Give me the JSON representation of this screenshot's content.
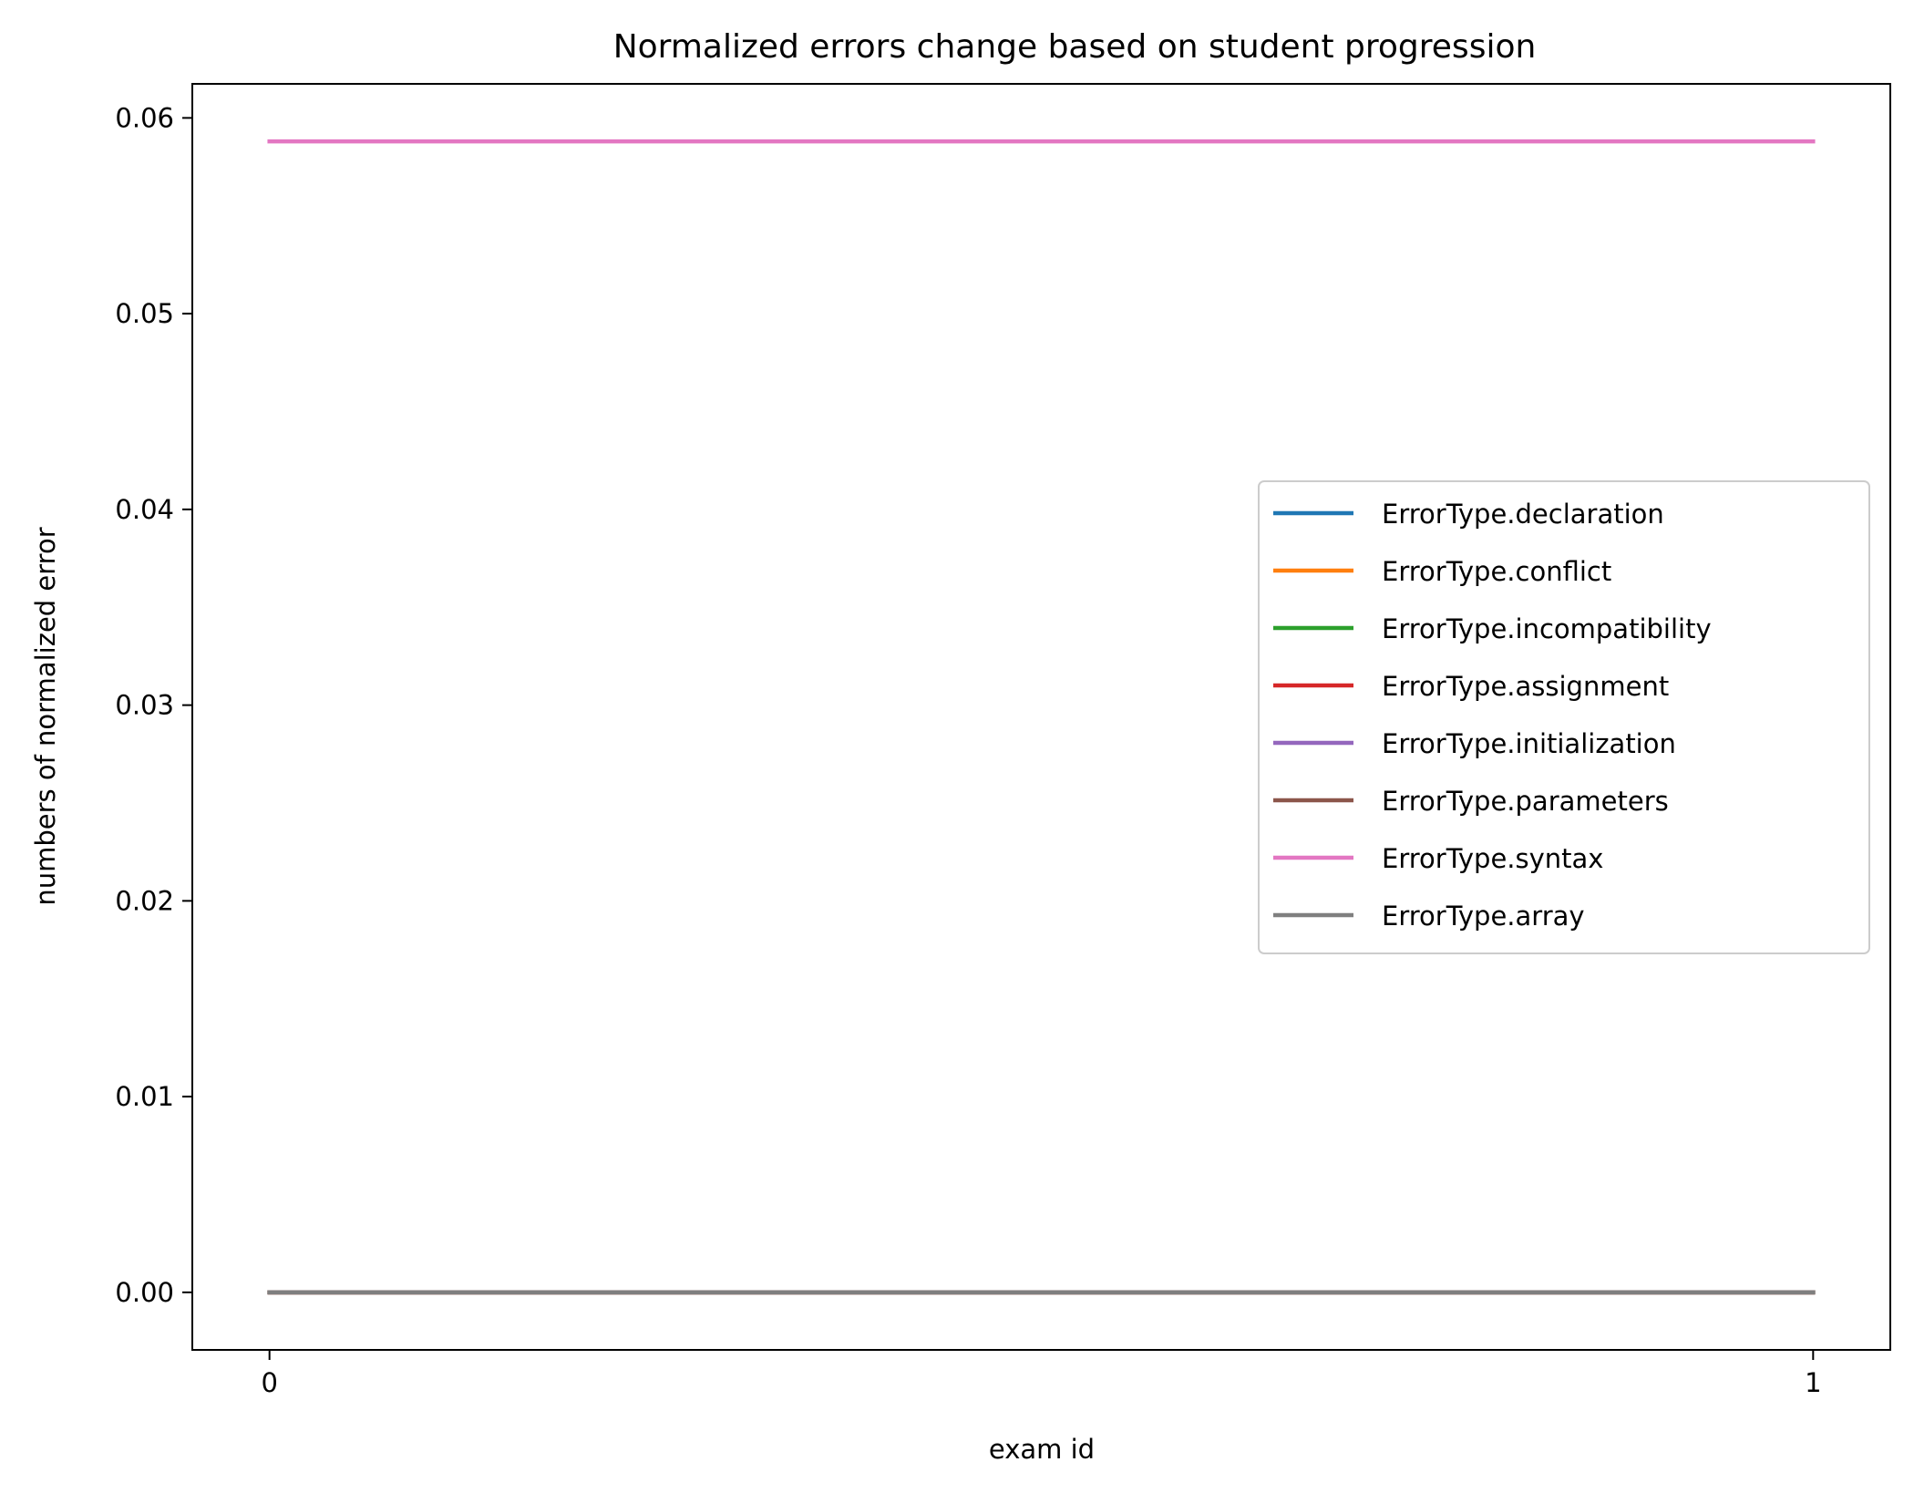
{
  "chart_data": {
    "type": "line",
    "title": "Normalized errors change based on student progression",
    "xlabel": "exam id",
    "ylabel": "numbers of normalized error",
    "x": [
      0,
      1
    ],
    "xticks": [
      "0",
      "1"
    ],
    "xlim": [
      -0.05,
      1.05
    ],
    "ylim": [
      -0.00294,
      0.06174
    ],
    "yticks": [
      0.0,
      0.01,
      0.02,
      0.03,
      0.04,
      0.05,
      0.06
    ],
    "ytick_labels": [
      "0.00",
      "0.01",
      "0.02",
      "0.03",
      "0.04",
      "0.05",
      "0.06"
    ],
    "grid": false,
    "legend_position": "center-right",
    "series": [
      {
        "name": "ErrorType.declaration",
        "color": "#1f77b4",
        "values": [
          0.0,
          0.0
        ]
      },
      {
        "name": "ErrorType.conflict",
        "color": "#ff7f0e",
        "values": [
          0.0,
          0.0
        ]
      },
      {
        "name": "ErrorType.incompatibility",
        "color": "#2ca02c",
        "values": [
          0.0,
          0.0
        ]
      },
      {
        "name": "ErrorType.assignment",
        "color": "#d62728",
        "values": [
          0.0,
          0.0
        ]
      },
      {
        "name": "ErrorType.initialization",
        "color": "#9467bd",
        "values": [
          0.0,
          0.0
        ]
      },
      {
        "name": "ErrorType.parameters",
        "color": "#8c564b",
        "values": [
          0.0,
          0.0
        ]
      },
      {
        "name": "ErrorType.syntax",
        "color": "#e377c2",
        "values": [
          0.0588,
          0.0588
        ]
      },
      {
        "name": "ErrorType.array",
        "color": "#7f7f7f",
        "values": [
          0.0,
          0.0
        ]
      }
    ]
  }
}
